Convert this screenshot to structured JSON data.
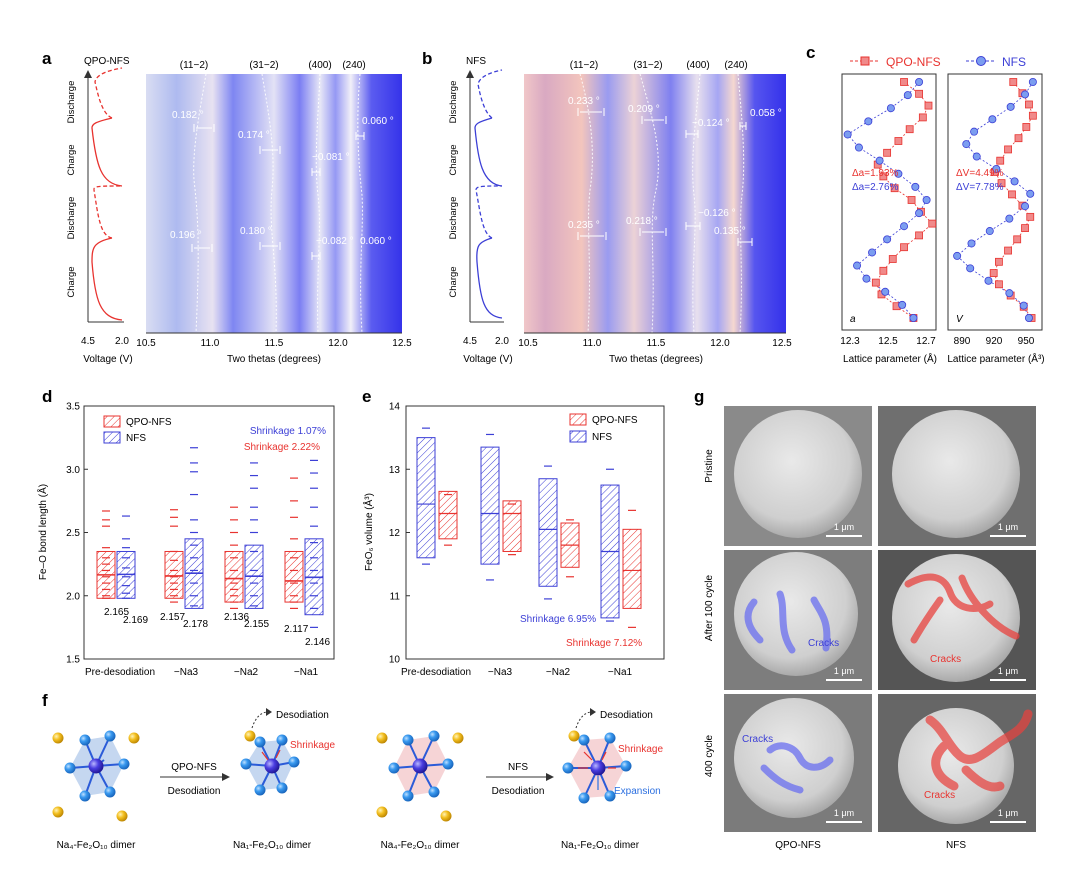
{
  "panel_letters": {
    "a": "a",
    "b": "b",
    "c": "c",
    "d": "d",
    "e": "e",
    "f": "f",
    "g": "g"
  },
  "colors": {
    "red": "#e8332f",
    "blue": "#3c3fd6",
    "heat_blue": "#3b38f0",
    "light_red": "#f7d3d3",
    "light_blue": "#c7d7f0",
    "gold": "#f0b51a",
    "sphere_blue": "#2f8ee6"
  },
  "panel_a": {
    "sample": "QPO-NFS",
    "peaks": [
      "(11−2)",
      "(31−2)",
      "(400)",
      "(240)"
    ],
    "shifts": [
      "0.182 °",
      "0.174 °",
      "−0.081 °",
      "0.060 °",
      "0.196 °",
      "0.180 °",
      "−0.082 °",
      "0.060 °"
    ],
    "states": [
      "Discharge",
      "Charge",
      "Discharge",
      "Charge"
    ],
    "voltage_ticks": [
      "4.5",
      "2.0"
    ],
    "voltage_label": "Voltage (V)",
    "theta_ticks": [
      "10.5",
      "11.0",
      "11.5",
      "12.0",
      "12.5"
    ],
    "theta_label": "Two thetas (degrees)"
  },
  "panel_b": {
    "sample": "NFS",
    "peaks": [
      "(11−2)",
      "(31−2)",
      "(400)",
      "(240)"
    ],
    "shifts": [
      "0.233 °",
      "0.209 °",
      "−0.124 °",
      "0.058 °",
      "0.235 °",
      "0.218 °",
      "−0.126 °",
      "0.135 °"
    ],
    "states": [
      "Discharge",
      "Charge",
      "Discharge",
      "Charge"
    ],
    "voltage_ticks": [
      "4.5",
      "2.0"
    ],
    "voltage_label": "Voltage (V)",
    "theta_ticks": [
      "10.5",
      "11.0",
      "11.5",
      "12.0",
      "12.5"
    ],
    "theta_label": "Two thetas (degrees)"
  },
  "panel_c": {
    "legend_qpo": "QPO-NFS",
    "legend_nfs": "NFS",
    "a_label": "a",
    "v_label": "V",
    "delta_a_qpo": "Δa=1.93%",
    "delta_a_nfs": "Δa=2.76%",
    "delta_v_qpo": "ΔV=4.49%",
    "delta_v_nfs": "ΔV=7.78%",
    "a_ticks": [
      "12.3",
      "12.5",
      "12.7"
    ],
    "v_ticks": [
      "890",
      "920",
      "950"
    ],
    "a_xlabel": "Lattice parameter (Å)",
    "v_xlabel": "Lattice parameter (Å³)"
  },
  "panel_d": {
    "ylabel": "Fe–O bond length (Å)",
    "legend_qpo": "QPO-NFS",
    "legend_nfs": "NFS",
    "shrink_nfs": "Shrinkage 1.07%",
    "shrink_qpo": "Shrinkage 2.22%",
    "values": [
      "2.165",
      "2.169",
      "2.157",
      "2.178",
      "2.136",
      "2.155",
      "2.117",
      "2.146"
    ]
  },
  "panel_e": {
    "ylabel": "FeO₆ volume (Å³)",
    "legend_qpo": "QPO-NFS",
    "legend_nfs": "NFS",
    "shrink_nfs": "Shrinkage 6.95%",
    "shrink_qpo": "Shrinkage 7.12%"
  },
  "panel_f": {
    "arrow_label_1": "QPO-NFS",
    "arrow_sub_1": "Desodiation",
    "arrow_label_2": "NFS",
    "arrow_sub_2": "Desodiation",
    "desodiation": "Desodiation",
    "shrinkage": "Shrinkage",
    "expansion": "Expansion",
    "dimer_na4": "Na₄-Fe₂O₁₀ dimer",
    "dimer_na1": "Na₁-Fe₂O₁₀ dimer"
  },
  "panel_g": {
    "rows": [
      "Pristine",
      "After 100 cycle",
      "400 cycle"
    ],
    "cols": [
      "QPO-NFS",
      "NFS"
    ],
    "scale": "1 μm",
    "cracks": "Cracks"
  },
  "chart_data": [
    {
      "type": "scatter",
      "title": "Lattice parameter a",
      "ylabel": "",
      "xlabel": "Lattice parameter (Å)",
      "xlim": [
        12.25,
        12.75
      ],
      "series": [
        {
          "name": "QPO-NFS",
          "values": [
            12.58,
            12.66,
            12.71,
            12.68,
            12.61,
            12.55,
            12.49,
            12.44,
            12.47,
            12.53,
            12.62,
            12.67,
            12.73,
            12.66,
            12.58,
            12.52,
            12.47,
            12.43,
            12.46,
            12.54,
            12.63
          ]
        },
        {
          "name": "NFS",
          "values": [
            12.66,
            12.6,
            12.51,
            12.39,
            12.28,
            12.34,
            12.45,
            12.55,
            12.64,
            12.7,
            12.66,
            12.58,
            12.49,
            12.41,
            12.33,
            12.38,
            12.48,
            12.57,
            12.63
          ]
        }
      ]
    },
    {
      "type": "scatter",
      "title": "Lattice parameter V",
      "xlabel": "Lattice parameter (Å³)",
      "xlim": [
        883,
        955
      ],
      "series": [
        {
          "name": "QPO-NFS",
          "values": [
            933,
            940,
            945,
            948,
            943,
            937,
            929,
            923,
            919,
            924,
            932,
            940,
            946,
            942,
            936,
            929,
            922,
            918,
            922,
            931,
            941,
            947
          ]
        },
        {
          "name": "NFS",
          "values": [
            948,
            942,
            931,
            917,
            903,
            897,
            905,
            920,
            934,
            946,
            942,
            930,
            915,
            901,
            890,
            900,
            914,
            930,
            941,
            945
          ]
        }
      ]
    },
    {
      "type": "box",
      "title": "Fe–O bond length",
      "ylabel": "Fe–O bond length (Å)",
      "categories": [
        "Pre-desodiation",
        "−Na3",
        "−Na2",
        "−Na1"
      ],
      "ylim": [
        1.5,
        3.5
      ],
      "series": [
        {
          "name": "QPO-NFS",
          "means": [
            2.165,
            2.157,
            2.136,
            2.117
          ],
          "box_low": [
            1.98,
            1.98,
            1.95,
            1.95
          ],
          "box_high": [
            2.35,
            2.35,
            2.35,
            2.35
          ]
        },
        {
          "name": "NFS",
          "means": [
            2.169,
            2.178,
            2.155,
            2.146
          ],
          "box_low": [
            1.98,
            1.9,
            1.9,
            1.85
          ],
          "box_high": [
            2.35,
            2.45,
            2.4,
            2.45
          ]
        }
      ]
    },
    {
      "type": "box",
      "title": "FeO6 volume",
      "ylabel": "FeO₆ volume (Å³)",
      "categories": [
        "Pre-desodiation",
        "−Na3",
        "−Na2",
        "−Na1"
      ],
      "ylim": [
        10,
        14
      ],
      "series": [
        {
          "name": "NFS",
          "box_low": [
            11.6,
            11.5,
            11.15,
            10.65
          ],
          "box_high": [
            13.5,
            13.35,
            12.85,
            12.75
          ],
          "mid": [
            12.45,
            12.3,
            12.05,
            11.7
          ]
        },
        {
          "name": "QPO-NFS",
          "box_low": [
            11.9,
            11.7,
            11.45,
            10.8
          ],
          "box_high": [
            12.65,
            12.5,
            12.15,
            12.05
          ],
          "mid": [
            12.3,
            12.3,
            11.8,
            11.4
          ]
        }
      ]
    }
  ]
}
